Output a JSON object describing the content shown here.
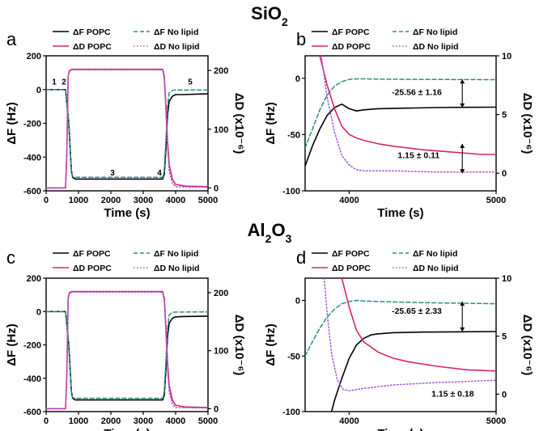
{
  "figure": {
    "sections": [
      {
        "title": "SiO",
        "sub": "2",
        "post": ""
      },
      {
        "title": "Al",
        "sub": "2",
        "post": "O",
        "sub2": "3"
      }
    ]
  },
  "colors": {
    "f_popc": "#000000",
    "d_popc": "#d6246e",
    "f_nolipid": "#2e8b8b",
    "d_nolipid": "#a259d9"
  },
  "chart_data": [
    {
      "panel": "a",
      "type": "line",
      "title": "SiO2",
      "xlabel": "Time (s)",
      "ylabel_left": "ΔF (Hz)",
      "ylabel_right": "ΔD (x10⁻⁶)",
      "xlim": [
        0,
        5000
      ],
      "ylim_left": [
        -600,
        200
      ],
      "ylim_right": [
        -5,
        225
      ],
      "xticks": [
        0,
        1000,
        2000,
        3000,
        4000,
        5000
      ],
      "yticks_left": [
        -600,
        -400,
        -200,
        0,
        200
      ],
      "yticks_right": [
        0,
        100,
        200
      ],
      "legend": [
        "ΔF POPC",
        "ΔF No lipid",
        "ΔD POPC",
        "ΔD No lipid"
      ],
      "step_labels": [
        {
          "text": "1",
          "x": 250,
          "y": 30
        },
        {
          "text": "2",
          "x": 550,
          "y": 30
        },
        {
          "text": "3",
          "x": 2050,
          "y": -510
        },
        {
          "text": "4",
          "x": 3500,
          "y": -510
        },
        {
          "text": "5",
          "x": 4450,
          "y": 30
        }
      ],
      "series": [
        {
          "name": "ΔF POPC",
          "axis": "left",
          "style": "solid",
          "color_key": "f_popc",
          "x": [
            0,
            600,
            700,
            780,
            820,
            900,
            3600,
            3650,
            3700,
            3750,
            3800,
            3900,
            4000,
            4200,
            5000
          ],
          "y": [
            0,
            0,
            -200,
            -480,
            -520,
            -530,
            -530,
            -500,
            -350,
            -150,
            -70,
            -40,
            -30,
            -30,
            -25
          ]
        },
        {
          "name": "ΔF No lipid",
          "axis": "left",
          "style": "dashed",
          "color_key": "f_nolipid",
          "x": [
            0,
            600,
            700,
            780,
            820,
            900,
            3600,
            3650,
            3700,
            3750,
            3800,
            3900,
            4000,
            5000
          ],
          "y": [
            0,
            0,
            -200,
            -480,
            -515,
            -520,
            -520,
            -480,
            -300,
            -100,
            -20,
            -5,
            -3,
            -2
          ]
        },
        {
          "name": "ΔD POPC",
          "axis": "right",
          "style": "solid",
          "color_key": "d_popc",
          "x": [
            0,
            600,
            640,
            680,
            720,
            800,
            3600,
            3650,
            3700,
            3750,
            3800,
            3900,
            4000,
            4300,
            5000
          ],
          "y": [
            0,
            0,
            60,
            190,
            200,
            202,
            202,
            190,
            140,
            80,
            40,
            15,
            6,
            3,
            2
          ]
        },
        {
          "name": "ΔD No lipid",
          "axis": "right",
          "style": "dotted",
          "color_key": "d_nolipid",
          "x": [
            0,
            600,
            640,
            680,
            720,
            800,
            3600,
            3650,
            3700,
            3750,
            3800,
            3900,
            4000,
            5000
          ],
          "y": [
            0,
            0,
            60,
            190,
            199,
            201,
            201,
            185,
            130,
            70,
            30,
            8,
            2,
            1
          ]
        }
      ]
    },
    {
      "panel": "b",
      "type": "line",
      "xlabel": "Time (s)",
      "ylabel_left": "ΔF (Hz)",
      "ylabel_right": "ΔD (x10⁻⁶)",
      "xlim": [
        3700,
        5000
      ],
      "ylim_left": [
        -100,
        20
      ],
      "ylim_right": [
        -1.5,
        10
      ],
      "xticks": [
        4000,
        5000
      ],
      "yticks_left": [
        -100,
        -50,
        0
      ],
      "yticks_right": [
        0,
        5,
        10
      ],
      "legend": [
        "ΔF POPC",
        "ΔF No lipid",
        "ΔD POPC",
        "ΔD No lipid"
      ],
      "annotations": [
        {
          "text": "-25.56 ± 1.16",
          "x": 4290,
          "y": -15,
          "arrow_x": 4770,
          "arrow_from": -1,
          "arrow_to": -26
        },
        {
          "text": "1.15 ± 0.11",
          "x": 4330,
          "y": 1.3,
          "arrow_x": 4770,
          "arrow_from": 2.5,
          "arrow_to": 0
        }
      ],
      "series": [
        {
          "name": "ΔF POPC",
          "axis": "left",
          "style": "solid",
          "color_key": "f_popc",
          "x": [
            3700,
            3750,
            3800,
            3850,
            3900,
            3950,
            4000,
            4050,
            4100,
            4200,
            4400,
            4600,
            4800,
            5000
          ],
          "y": [
            -78,
            -60,
            -45,
            -33,
            -26,
            -23,
            -27,
            -29,
            -28,
            -27,
            -26.5,
            -26,
            -25.8,
            -25.6
          ]
        },
        {
          "name": "ΔF No lipid",
          "axis": "left",
          "style": "dashed",
          "color_key": "f_nolipid",
          "x": [
            3700,
            3750,
            3800,
            3850,
            3900,
            3950,
            4000,
            4050,
            4100,
            4200,
            4500,
            5000
          ],
          "y": [
            -62,
            -45,
            -28,
            -15,
            -7,
            -3,
            -1,
            -0.5,
            -0.5,
            -0.8,
            -1,
            -1.2
          ]
        },
        {
          "name": "ΔD POPC",
          "axis": "right",
          "style": "solid",
          "color_key": "d_popc",
          "x": [
            3800,
            3850,
            3900,
            3950,
            4000,
            4050,
            4100,
            4200,
            4300,
            4500,
            4700,
            4900,
            5000
          ],
          "y": [
            10,
            7.5,
            5.5,
            4.0,
            3.3,
            3.0,
            2.8,
            2.5,
            2.3,
            2.0,
            1.8,
            1.6,
            1.6
          ]
        },
        {
          "name": "ΔD No lipid",
          "axis": "right",
          "style": "dotted",
          "color_key": "d_nolipid",
          "x": [
            3810,
            3850,
            3900,
            3950,
            4000,
            4050,
            4100,
            4300,
            4600,
            5000
          ],
          "y": [
            10,
            6.5,
            3.5,
            1.5,
            0.7,
            0.3,
            0.2,
            0.2,
            0.1,
            0.1
          ]
        }
      ]
    },
    {
      "panel": "c",
      "type": "line",
      "title": "Al2O3",
      "xlabel": "Time (s)",
      "ylabel_left": "ΔF (Hz)",
      "ylabel_right": "ΔD (x10⁻⁶)",
      "xlim": [
        0,
        5000
      ],
      "ylim_left": [
        -600,
        200
      ],
      "ylim_right": [
        -5,
        225
      ],
      "xticks": [
        0,
        1000,
        2000,
        3000,
        4000,
        5000
      ],
      "yticks_left": [
        -600,
        -400,
        -200,
        0,
        200
      ],
      "yticks_right": [
        0,
        100,
        200
      ],
      "legend": [
        "ΔF POPC",
        "ΔF No lipid",
        "ΔD POPC",
        "ΔD No lipid"
      ],
      "series": [
        {
          "name": "ΔF POPC",
          "axis": "left",
          "style": "solid",
          "color_key": "f_popc",
          "x": [
            0,
            600,
            700,
            780,
            820,
            900,
            3600,
            3650,
            3700,
            3750,
            3800,
            3900,
            4000,
            4200,
            5000
          ],
          "y": [
            0,
            0,
            -200,
            -480,
            -520,
            -530,
            -530,
            -500,
            -350,
            -150,
            -70,
            -40,
            -32,
            -30,
            -28
          ]
        },
        {
          "name": "ΔF No lipid",
          "axis": "left",
          "style": "dashed",
          "color_key": "f_nolipid",
          "x": [
            0,
            600,
            700,
            780,
            820,
            900,
            3600,
            3650,
            3700,
            3750,
            3800,
            3900,
            4000,
            5000
          ],
          "y": [
            0,
            0,
            -200,
            -480,
            -515,
            -520,
            -520,
            -480,
            -300,
            -100,
            -20,
            -5,
            -3,
            -2
          ]
        },
        {
          "name": "ΔD POPC",
          "axis": "right",
          "style": "solid",
          "color_key": "d_popc",
          "x": [
            0,
            600,
            640,
            680,
            720,
            800,
            3600,
            3650,
            3700,
            3750,
            3800,
            3900,
            4000,
            4300,
            5000
          ],
          "y": [
            0,
            0,
            60,
            190,
            200,
            202,
            202,
            190,
            140,
            80,
            40,
            15,
            6,
            3,
            2
          ]
        },
        {
          "name": "ΔD No lipid",
          "axis": "right",
          "style": "dotted",
          "color_key": "d_nolipid",
          "x": [
            0,
            600,
            640,
            680,
            720,
            800,
            3600,
            3650,
            3700,
            3750,
            3800,
            3900,
            4000,
            5000
          ],
          "y": [
            0,
            0,
            60,
            190,
            199,
            201,
            201,
            185,
            130,
            70,
            30,
            8,
            2,
            1
          ]
        }
      ]
    },
    {
      "panel": "d",
      "type": "line",
      "xlabel": "Time (s)",
      "ylabel_left": "ΔF (Hz)",
      "ylabel_right": "ΔD (x10⁻⁶)",
      "xlim": [
        3700,
        5000
      ],
      "ylim_left": [
        -100,
        20
      ],
      "ylim_right": [
        -1.5,
        10
      ],
      "xticks": [
        4000,
        5000
      ],
      "yticks_left": [
        -100,
        -50,
        0
      ],
      "yticks_right": [
        0,
        5,
        10
      ],
      "legend": [
        "ΔF POPC",
        "ΔF No lipid",
        "ΔD POPC",
        "ΔD No lipid"
      ],
      "annotations": [
        {
          "text": "-25.65 ± 2.33",
          "x": 4290,
          "y": -12,
          "arrow_x": 4770,
          "arrow_from": -1,
          "arrow_to": -28
        },
        {
          "text": "1.15 ± 0.18",
          "x": 4560,
          "y": -0.2
        }
      ],
      "series": [
        {
          "name": "ΔF POPC",
          "axis": "left",
          "style": "solid",
          "color_key": "f_popc",
          "x": [
            3880,
            3900,
            3950,
            4000,
            4050,
            4100,
            4150,
            4200,
            4300,
            4500,
            4700,
            5000
          ],
          "y": [
            -100,
            -90,
            -70,
            -52,
            -40,
            -34,
            -31,
            -30,
            -29,
            -28.5,
            -28.3,
            -28
          ]
        },
        {
          "name": "ΔF No lipid",
          "axis": "left",
          "style": "dashed",
          "color_key": "f_nolipid",
          "x": [
            3700,
            3750,
            3800,
            3850,
            3900,
            3950,
            4000,
            4050,
            4100,
            4200,
            4500,
            5000
          ],
          "y": [
            -50,
            -37,
            -25,
            -15,
            -8,
            -3,
            -1,
            0,
            -0.5,
            -1,
            -2,
            -3
          ]
        },
        {
          "name": "ΔD POPC",
          "axis": "right",
          "style": "solid",
          "color_key": "d_popc",
          "x": [
            3950,
            4000,
            4050,
            4100,
            4200,
            4300,
            4400,
            4600,
            4800,
            5000
          ],
          "y": [
            10,
            7.5,
            5.5,
            4.5,
            3.6,
            3.1,
            2.8,
            2.4,
            2.1,
            2.0
          ]
        },
        {
          "name": "ΔD No lipid",
          "axis": "right",
          "style": "dotted",
          "color_key": "d_nolipid",
          "x": [
            3830,
            3850,
            3880,
            3920,
            3960,
            4000,
            4100,
            4300,
            4600,
            5000
          ],
          "y": [
            10,
            7,
            3.5,
            1.2,
            0.4,
            0.3,
            0.5,
            0.8,
            1.0,
            1.2
          ]
        }
      ]
    }
  ]
}
